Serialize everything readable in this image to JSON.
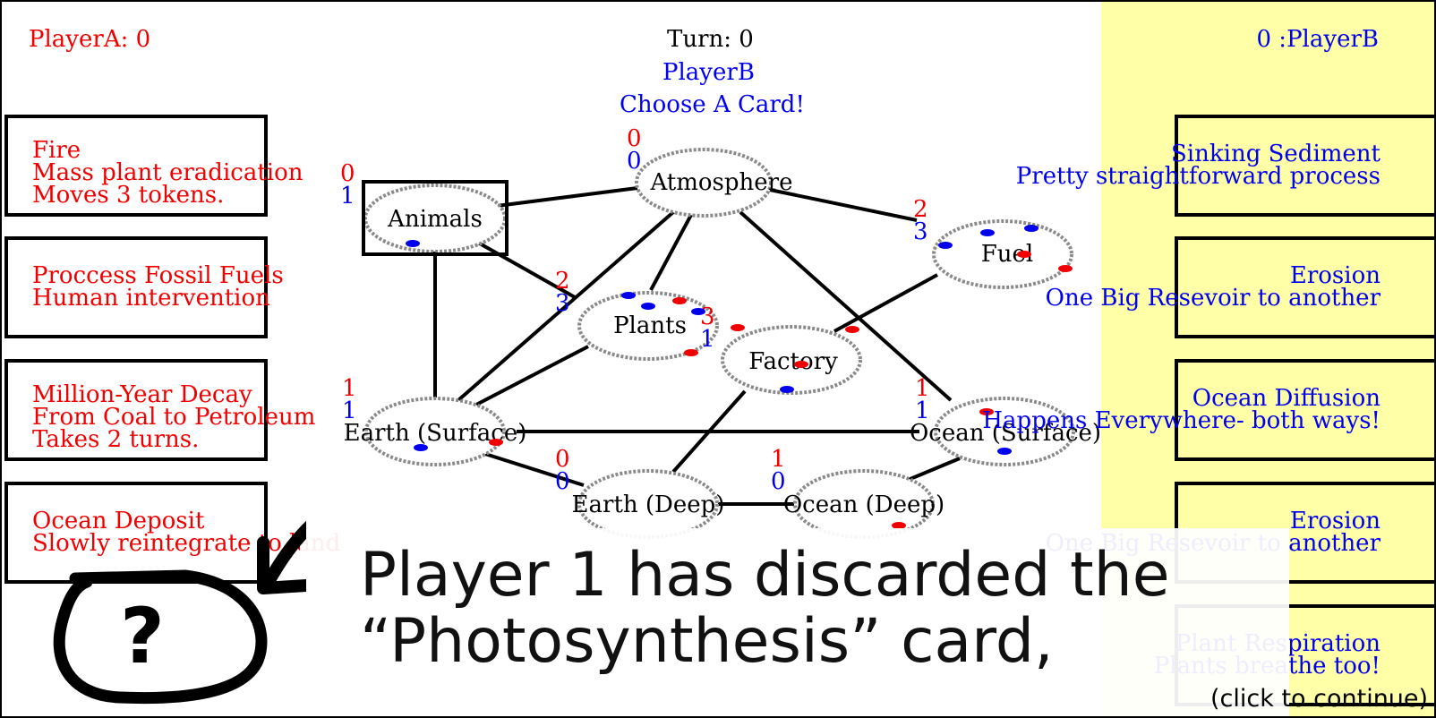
{
  "scores": {
    "player_a": "PlayerA: 0",
    "player_b": "0 :PlayerB"
  },
  "turn": {
    "label": "Turn: 0",
    "current_player": "PlayerB",
    "prompt": "Choose A Card!"
  },
  "player_a_cards": [
    {
      "title": "Fire",
      "description": "Mass plant eradication",
      "extra": "Moves 3 tokens."
    },
    {
      "title": "Proccess Fossil Fuels",
      "description": "Human intervention",
      "extra": ""
    },
    {
      "title": "Million-Year Decay",
      "description": "From Coal to Petroleum",
      "extra": "Takes 2 turns."
    },
    {
      "title": "Ocean Deposit",
      "description": "Slowly reintegrate to land",
      "extra": ""
    }
  ],
  "player_b_cards": [
    {
      "title": "Sinking Sediment",
      "description": "Pretty straightforward process"
    },
    {
      "title": "Erosion",
      "description": "One Big Resevoir to another"
    },
    {
      "title": "Ocean Diffusion",
      "description": "Happens Everywhere- both ways!"
    },
    {
      "title": "Erosion",
      "description": "One Big Resevoir to another"
    },
    {
      "title": "Plant Respiration",
      "description": "Plants breathe too!"
    }
  ],
  "reservoirs": {
    "atmosphere": {
      "label": "Atmosphere",
      "red": "0",
      "blue": "0"
    },
    "animals": {
      "label": "Animals",
      "red": "0",
      "blue": "1"
    },
    "fuel": {
      "label": "Fuel",
      "red": "2",
      "blue": "3"
    },
    "plants": {
      "label": "Plants",
      "red": "2",
      "blue": "3",
      "red_b": "3",
      "blue_b": "1"
    },
    "factory": {
      "label": "Factory"
    },
    "earth_surface": {
      "label": "Earth (Surface)",
      "red": "1",
      "blue": "1"
    },
    "ocean_surface": {
      "label": "Ocean (Surface)",
      "red": "1",
      "blue": "1"
    },
    "earth_deep": {
      "label": "Earth (Deep)",
      "red": "0",
      "blue": "0"
    },
    "ocean_deep": {
      "label": "Ocean (Deep)",
      "red": "1",
      "blue": "0"
    }
  },
  "tutorial": {
    "caption_line_1": "Player 1 has discarded the",
    "caption_line_2": "“Photosynthesis” card,",
    "continue": "(click to continue)",
    "hint_glyph": "?"
  },
  "colors": {
    "player_a": "#f00000",
    "player_b": "#0000ee",
    "player_b_panel": "#ffffa8"
  }
}
